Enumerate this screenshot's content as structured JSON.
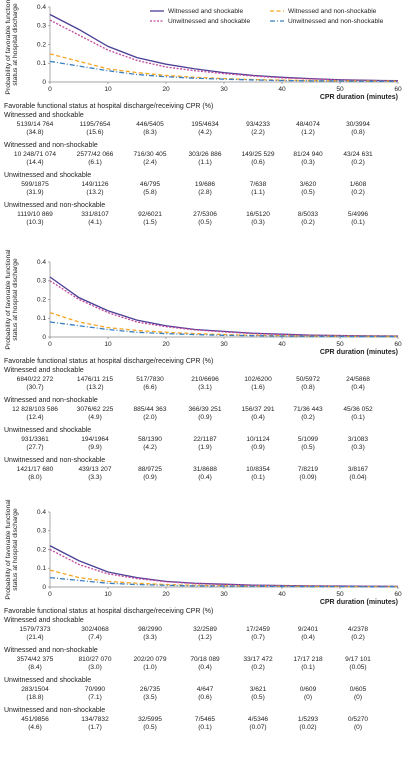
{
  "chart_data": [
    {
      "type": "line",
      "legend": true,
      "y_label": [
        "Probability of favorable functional",
        "status at hospital discharge"
      ],
      "x_label": "CPR duration (minutes)",
      "xlim": [
        0,
        60
      ],
      "ylim": [
        0,
        0.4
      ],
      "xticks": [
        0,
        10,
        20,
        30,
        40,
        50,
        60
      ],
      "yticks": [
        0,
        0.1,
        0.2,
        0.3,
        0.4
      ],
      "x": [
        0,
        5,
        10,
        15,
        20,
        25,
        30,
        35,
        40,
        45,
        50,
        55,
        60
      ],
      "series": [
        {
          "name": "Witnessed and shockable",
          "color": "#4b3f96",
          "linestyle": "solid",
          "values": [
            0.36,
            0.28,
            0.19,
            0.13,
            0.095,
            0.07,
            0.05,
            0.035,
            0.025,
            0.018,
            0.012,
            0.009,
            0.007
          ]
        },
        {
          "name": "Unwitnessed and shockable",
          "color": "#c2479b",
          "linestyle": "dotted",
          "values": [
            0.33,
            0.25,
            0.17,
            0.115,
            0.08,
            0.06,
            0.045,
            0.032,
            0.022,
            0.016,
            0.011,
            0.008,
            0.006
          ]
        },
        {
          "name": "Witnessed and non-shockable",
          "color": "#f5a623",
          "linestyle": "dashed",
          "values": [
            0.15,
            0.11,
            0.07,
            0.05,
            0.035,
            0.025,
            0.018,
            0.013,
            0.01,
            0.008,
            0.006,
            0.005,
            0.004
          ]
        },
        {
          "name": "Unwitnessed and non-shockable",
          "color": "#3a7fc1",
          "linestyle": "dashdot",
          "values": [
            0.11,
            0.085,
            0.06,
            0.04,
            0.028,
            0.02,
            0.015,
            0.011,
            0.008,
            0.006,
            0.005,
            0.004,
            0.003
          ]
        }
      ],
      "table": {
        "title": "Favorable functional status at hospital discharge/receiving CPR (%)",
        "groups": [
          {
            "name": "Witnessed and shockable",
            "cells": [
              [
                "5139/14 764",
                "(34.8)"
              ],
              [
                "1195/7654",
                "(15.6)"
              ],
              [
                "446/5405",
                "(8.3)"
              ],
              [
                "195/4634",
                "(4.2)"
              ],
              [
                "93/4233",
                "(2.2)"
              ],
              [
                "48/4074",
                "(1.2)"
              ],
              [
                "30/3994",
                "(0.8)"
              ]
            ]
          },
          {
            "name": "Witnessed and non-shockable",
            "cells": [
              [
                "10 248/71 074",
                "(14.4)"
              ],
              [
                "2577/42 066",
                "(6.1)"
              ],
              [
                "716/30 405",
                "(2.4)"
              ],
              [
                "303/26 886",
                "(1.1)"
              ],
              [
                "149/25 529",
                "(0.6)"
              ],
              [
                "81/24 940",
                "(0.3)"
              ],
              [
                "43/24 631",
                "(0.2)"
              ]
            ]
          },
          {
            "name": "Unwitnessed and shockable",
            "cells": [
              [
                "599/1875",
                "(31.9)"
              ],
              [
                "149/1126",
                "(13.2)"
              ],
              [
                "46/795",
                "(5.8)"
              ],
              [
                "19/686",
                "(2.8)"
              ],
              [
                "7/638",
                "(1.1)"
              ],
              [
                "3/620",
                "(0.5)"
              ],
              [
                "1/608",
                "(0.2)"
              ]
            ]
          },
          {
            "name": "Unwitnessed and non-shockable",
            "cells": [
              [
                "1119/10 869",
                "(10.3)"
              ],
              [
                "331/8107",
                "(4.1)"
              ],
              [
                "92/6021",
                "(1.5)"
              ],
              [
                "27/5306",
                "(0.5)"
              ],
              [
                "16/5120",
                "(0.3)"
              ],
              [
                "8/5033",
                "(0.2)"
              ],
              [
                "5/4996",
                "(0.1)"
              ]
            ]
          }
        ]
      }
    },
    {
      "type": "line",
      "legend": false,
      "y_label": [
        "Probability of favorable functional",
        "status at hospital discharge"
      ],
      "x_label": "CPR duration (minutes)",
      "xlim": [
        0,
        60
      ],
      "ylim": [
        0,
        0.4
      ],
      "xticks": [
        0,
        10,
        20,
        30,
        40,
        50,
        60
      ],
      "yticks": [
        0,
        0.1,
        0.2,
        0.3,
        0.4
      ],
      "x": [
        0,
        5,
        10,
        15,
        20,
        25,
        30,
        35,
        40,
        45,
        50,
        55,
        60
      ],
      "series": [
        {
          "name": "Witnessed and shockable",
          "color": "#4b3f96",
          "linestyle": "solid",
          "values": [
            0.32,
            0.21,
            0.14,
            0.09,
            0.06,
            0.04,
            0.03,
            0.02,
            0.015,
            0.01,
            0.008,
            0.006,
            0.005
          ]
        },
        {
          "name": "Unwitnessed and shockable",
          "color": "#c2479b",
          "linestyle": "dotted",
          "values": [
            0.3,
            0.2,
            0.13,
            0.08,
            0.055,
            0.038,
            0.027,
            0.018,
            0.013,
            0.009,
            0.007,
            0.005,
            0.004
          ]
        },
        {
          "name": "Witnessed and non-shockable",
          "color": "#f5a623",
          "linestyle": "dashed",
          "values": [
            0.13,
            0.08,
            0.05,
            0.035,
            0.025,
            0.018,
            0.013,
            0.009,
            0.007,
            0.005,
            0.004,
            0.003,
            0.003
          ]
        },
        {
          "name": "Unwitnessed and non-shockable",
          "color": "#3a7fc1",
          "linestyle": "dashdot",
          "values": [
            0.08,
            0.06,
            0.04,
            0.025,
            0.018,
            0.013,
            0.009,
            0.007,
            0.005,
            0.004,
            0.003,
            0.002,
            0.002
          ]
        }
      ],
      "table": {
        "title": "Favorable functional status at hospital discharge/receiving CPR (%)",
        "groups": [
          {
            "name": "Witnessed and shockable",
            "cells": [
              [
                "6840/22 272",
                "(30.7)"
              ],
              [
                "1476/11 215",
                "(13.2)"
              ],
              [
                "517/7830",
                "(6.6)"
              ],
              [
                "210/6696",
                "(3.1)"
              ],
              [
                "102/6200",
                "(1.6)"
              ],
              [
                "50/5972",
                "(0.8)"
              ],
              [
                "24/5868",
                "(0.4)"
              ]
            ]
          },
          {
            "name": "Witnessed and non-shockable",
            "cells": [
              [
                "12 828/103 586",
                "(12.4)"
              ],
              [
                "3076/62 225",
                "(4.9)"
              ],
              [
                "885/44 363",
                "(2.0)"
              ],
              [
                "366/39 251",
                "(0.9)"
              ],
              [
                "156/37 291",
                "(0.4)"
              ],
              [
                "71/36 443",
                "(0.2)"
              ],
              [
                "45/36 052",
                "(0.1)"
              ]
            ]
          },
          {
            "name": "Unwitnessed and shockable",
            "cells": [
              [
                "931/3361",
                "(27.7)"
              ],
              [
                "194/1964",
                "(9.9)"
              ],
              [
                "58/1390",
                "(4.2)"
              ],
              [
                "22/1187",
                "(1.9)"
              ],
              [
                "10/1124",
                "(0.9)"
              ],
              [
                "5/1099",
                "(0.5)"
              ],
              [
                "3/1083",
                "(0.3)"
              ]
            ]
          },
          {
            "name": "Unwitnessed and non-shockable",
            "cells": [
              [
                "1421/17 680",
                "(8.0)"
              ],
              [
                "439/13 207",
                "(3.3)"
              ],
              [
                "88/9725",
                "(0.9)"
              ],
              [
                "31/8688",
                "(0.4)"
              ],
              [
                "10/8354",
                "(0.1)"
              ],
              [
                "7/8219",
                "(0.09)"
              ],
              [
                "3/8167",
                "(0.04)"
              ]
            ]
          }
        ]
      }
    },
    {
      "type": "line",
      "legend": false,
      "y_label": [
        "Probability of favorable functional",
        "status at hospital discharge"
      ],
      "x_label": "CPR duration (minutes)",
      "xlim": [
        0,
        60
      ],
      "ylim": [
        0,
        0.4
      ],
      "xticks": [
        0,
        10,
        20,
        30,
        40,
        50,
        60
      ],
      "yticks": [
        0,
        0.1,
        0.2,
        0.3,
        0.4
      ],
      "x": [
        0,
        5,
        10,
        15,
        20,
        25,
        30,
        35,
        40,
        45,
        50,
        55,
        60
      ],
      "series": [
        {
          "name": "Witnessed and shockable",
          "color": "#4b3f96",
          "linestyle": "solid",
          "values": [
            0.22,
            0.14,
            0.08,
            0.05,
            0.03,
            0.02,
            0.015,
            0.01,
            0.008,
            0.006,
            0.005,
            0.004,
            0.003
          ]
        },
        {
          "name": "Unwitnessed and shockable",
          "color": "#c2479b",
          "linestyle": "dotted",
          "values": [
            0.2,
            0.12,
            0.07,
            0.045,
            0.028,
            0.018,
            0.013,
            0.009,
            0.007,
            0.005,
            0.004,
            0.003,
            0.003
          ]
        },
        {
          "name": "Witnessed and non-shockable",
          "color": "#f5a623",
          "linestyle": "dashed",
          "values": [
            0.09,
            0.05,
            0.03,
            0.02,
            0.013,
            0.009,
            0.007,
            0.005,
            0.004,
            0.003,
            0.002,
            0.002,
            0.002
          ]
        },
        {
          "name": "Unwitnessed and non-shockable",
          "color": "#3a7fc1",
          "linestyle": "dashdot",
          "values": [
            0.05,
            0.035,
            0.02,
            0.013,
            0.009,
            0.006,
            0.005,
            0.004,
            0.003,
            0.002,
            0.002,
            0.001,
            0.001
          ]
        }
      ],
      "table": {
        "title": "Favorable functional status at hospital discharge/receiving CPR (%)",
        "groups": [
          {
            "name": "Witnessed and shockable",
            "cells": [
              [
                "1579/7373",
                "(21.4)"
              ],
              [
                "302/4068",
                "(7.4)"
              ],
              [
                "98/2990",
                "(3.3)"
              ],
              [
                "32/2589",
                "(1.2)"
              ],
              [
                "17/2459",
                "(0.7)"
              ],
              [
                "9/2401",
                "(0.4)"
              ],
              [
                "4/2378",
                "(0.2)"
              ]
            ]
          },
          {
            "name": "Witnessed and non-shockable",
            "cells": [
              [
                "3574/42 375",
                "(8.4)"
              ],
              [
                "810/27 070",
                "(3.0)"
              ],
              [
                "202/20 079",
                "(1.0)"
              ],
              [
                "70/18 089",
                "(0.4)"
              ],
              [
                "33/17 472",
                "(0.2)"
              ],
              [
                "17/17 218",
                "(0.1)"
              ],
              [
                "9/17 101",
                "(0.05)"
              ]
            ]
          },
          {
            "name": "Unwitnessed and shockable",
            "cells": [
              [
                "283/1504",
                "(18.8)"
              ],
              [
                "70/990",
                "(7.1)"
              ],
              [
                "26/735",
                "(3.5)"
              ],
              [
                "4/647",
                "(0.6)"
              ],
              [
                "3/621",
                "(0.5)"
              ],
              [
                "0/609",
                "(0)"
              ],
              [
                "0/605",
                "(0)"
              ]
            ]
          },
          {
            "name": "Unwitnessed and non-shockable",
            "cells": [
              [
                "451/9856",
                "(4.6)"
              ],
              [
                "134/7832",
                "(1.7)"
              ],
              [
                "32/5995",
                "(0.5)"
              ],
              [
                "7/5465",
                "(0.1)"
              ],
              [
                "4/5346",
                "(0.07)"
              ],
              [
                "1/5293",
                "(0.02)"
              ],
              [
                "0/5270",
                "(0)"
              ]
            ]
          }
        ]
      }
    }
  ]
}
